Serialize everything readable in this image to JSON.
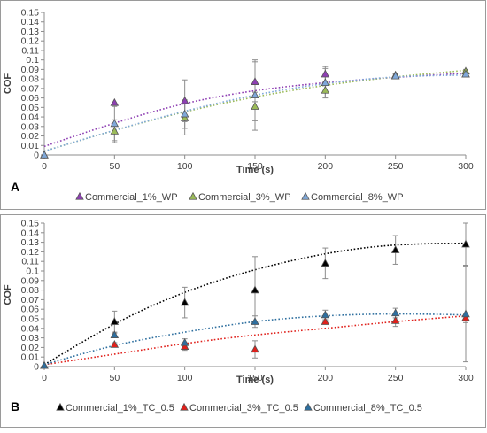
{
  "chart_data": [
    {
      "panel_label": "A",
      "type": "scatter",
      "xlabel": "Time (s)",
      "ylabel": "COF",
      "xlim": [
        0,
        300
      ],
      "ylim": [
        0,
        0.15
      ],
      "x_ticks": [
        "0",
        "50",
        "100",
        "150",
        "200",
        "250",
        "300"
      ],
      "y_ticks": [
        "0",
        "0.01",
        "0.02",
        "0.03",
        "0.04",
        "0.05",
        "0.06",
        "0.07",
        "0.08",
        "0.09",
        "0.1",
        "0.11",
        "0.12",
        "0.13",
        "0.14",
        "0.15"
      ],
      "grid": false,
      "legend_position": "bottom",
      "trendline": "polynomial (dotted)",
      "series": [
        {
          "name": "Commercial_1%_WP",
          "color": "#8e3fb3",
          "x": [
            0,
            50,
            100,
            150,
            200,
            250,
            300
          ],
          "y": [
            0,
            0.055,
            0.057,
            0.077,
            0.085,
            0.084,
            0.085
          ],
          "trend_y": [
            0.009,
            0.054,
            0.076,
            0.086
          ]
        },
        {
          "name": "Commercial_3%_WP",
          "color": "#9bbb59",
          "x": [
            0,
            50,
            100,
            150,
            200,
            250,
            300
          ],
          "y": [
            0,
            0.025,
            0.039,
            0.051,
            0.068,
            0.083,
            0.088
          ],
          "trend_y": [
            0.004,
            0.036,
            0.061,
            0.078,
            0.089
          ]
        },
        {
          "name": "Commercial_8%_WP",
          "color": "#7fa8d9",
          "x": [
            0,
            50,
            100,
            150,
            200,
            250,
            300
          ],
          "y": [
            0,
            0.033,
            0.043,
            0.063,
            0.076,
            0.083,
            0.085
          ],
          "trend_y": [
            0.004,
            0.026,
            0.046,
            0.063,
            0.075,
            0.082,
            0.084
          ]
        }
      ]
    },
    {
      "panel_label": "B",
      "type": "scatter",
      "xlabel": "Time (s)",
      "ylabel": "COF",
      "xlim": [
        0,
        300
      ],
      "ylim": [
        0,
        0.15
      ],
      "x_ticks": [
        "0",
        "50",
        "100",
        "150",
        "200",
        "250",
        "300"
      ],
      "y_ticks": [
        "0",
        "0.01",
        "0.02",
        "0.03",
        "0.04",
        "0.05",
        "0.06",
        "0.07",
        "0.08",
        "0.09",
        "0.1",
        "0.11",
        "0.12",
        "0.13",
        "0.14",
        "0.15"
      ],
      "grid": false,
      "legend_position": "bottom",
      "trendline": "polynomial (dotted)",
      "series": [
        {
          "name": "Commercial_1%_TC_0.5",
          "color": "#000000",
          "x": [
            0,
            50,
            100,
            150,
            200,
            250,
            300
          ],
          "y": [
            0.001,
            0.047,
            0.067,
            0.08,
            0.108,
            0.122,
            0.128
          ],
          "trend_y": [
            0.002,
            0.052,
            0.088,
            0.112,
            0.126,
            0.129
          ]
        },
        {
          "name": "Commercial_3%_TC_0.5",
          "color": "#e0201b",
          "x": [
            0,
            50,
            100,
            150,
            200,
            250,
            300
          ],
          "y": [
            0.001,
            0.023,
            0.021,
            0.018,
            0.047,
            0.048,
            0.051
          ],
          "trend_y": [
            0.002,
            0.013,
            0.024,
            0.033,
            0.04,
            0.047,
            0.053
          ]
        },
        {
          "name": "Commercial_8%_TC_0.5",
          "color": "#2e6f9f",
          "x": [
            0,
            50,
            100,
            150,
            200,
            250,
            300
          ],
          "y": [
            0.001,
            0.033,
            0.025,
            0.047,
            0.054,
            0.056,
            0.055
          ],
          "trend_y": [
            0.002,
            0.022,
            0.036,
            0.047,
            0.053,
            0.055,
            0.054
          ]
        }
      ]
    }
  ]
}
